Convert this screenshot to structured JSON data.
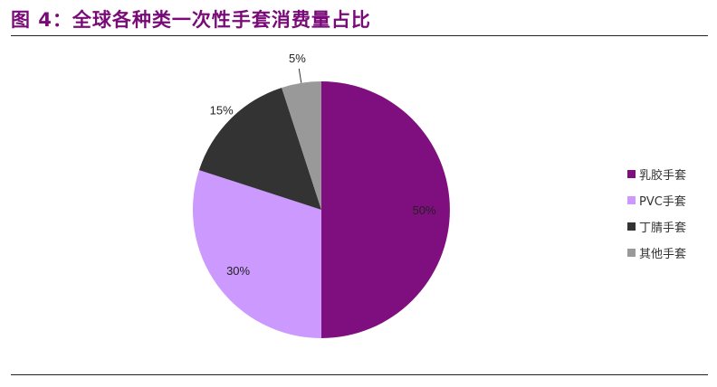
{
  "title": "图 4：全球各种类一次性手套消费量占比",
  "chart_data": {
    "type": "pie",
    "title": "图 4：全球各种类一次性手套消费量占比",
    "start": "12 o'clock, clockwise",
    "legend_position": "right",
    "slices": [
      {
        "name": "乳胶手套",
        "value": 50,
        "label": "50%",
        "color": "#7f0f7e"
      },
      {
        "name": "PVC手套",
        "value": 30,
        "label": "30%",
        "color": "#cc99ff"
      },
      {
        "name": "丁腈手套",
        "value": 15,
        "label": "15%",
        "color": "#333333"
      },
      {
        "name": "其他手套",
        "value": 5,
        "label": "5%",
        "color": "#999999"
      }
    ]
  }
}
